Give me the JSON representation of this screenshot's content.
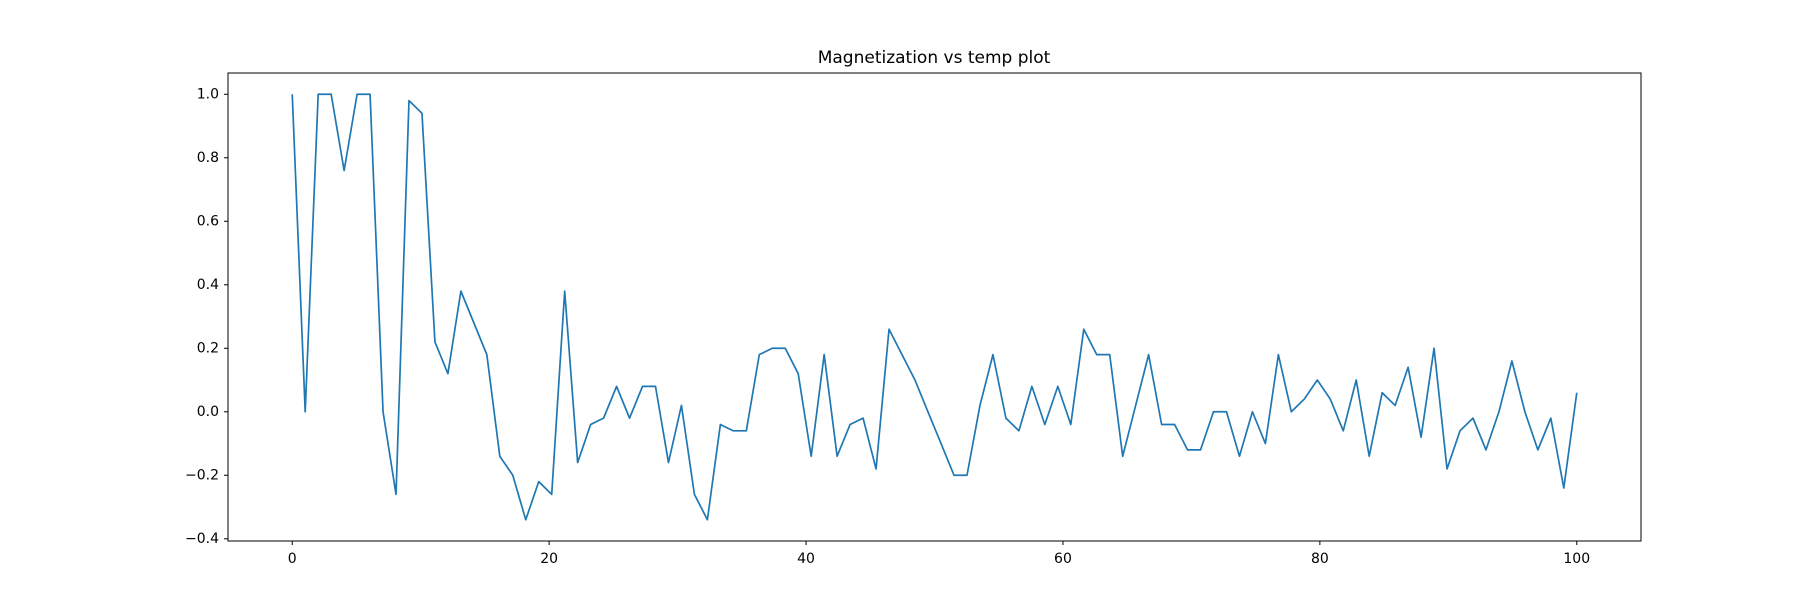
{
  "chart_data": {
    "type": "line",
    "title": "Magnetization vs temp plot",
    "x": [
      0,
      1.01,
      2.02,
      3.03,
      4.04,
      5.05,
      6.06,
      7.07,
      8.08,
      9.09,
      10.1,
      11.11,
      12.12,
      13.13,
      14.14,
      15.15,
      16.16,
      17.17,
      18.18,
      19.19,
      20.2,
      21.21,
      22.22,
      23.23,
      24.24,
      25.25,
      26.26,
      27.27,
      28.28,
      29.29,
      30.3,
      31.31,
      32.32,
      33.33,
      34.34,
      35.35,
      36.36,
      37.37,
      38.38,
      39.39,
      40.4,
      41.41,
      42.42,
      43.43,
      44.44,
      45.45,
      46.46,
      47.47,
      48.48,
      49.49,
      50.51,
      51.52,
      52.53,
      53.54,
      54.55,
      55.56,
      56.57,
      57.58,
      58.59,
      59.6,
      60.61,
      61.62,
      62.63,
      63.64,
      64.65,
      65.66,
      66.67,
      67.68,
      68.69,
      69.7,
      70.71,
      71.72,
      72.73,
      73.74,
      74.75,
      75.76,
      76.77,
      77.78,
      78.79,
      79.8,
      80.81,
      81.82,
      82.83,
      83.84,
      84.85,
      85.86,
      86.87,
      87.88,
      88.89,
      89.9,
      90.91,
      91.92,
      92.93,
      93.94,
      94.95,
      95.96,
      96.97,
      97.98,
      98.99,
      100
    ],
    "values": [
      1.0,
      0.0,
      1.0,
      1.0,
      0.76,
      1.0,
      1.0,
      0.0,
      -0.26,
      0.98,
      0.94,
      0.22,
      0.12,
      0.38,
      0.28,
      0.18,
      -0.14,
      -0.2,
      -0.34,
      -0.22,
      -0.26,
      0.38,
      -0.16,
      -0.04,
      -0.02,
      0.08,
      -0.02,
      0.08,
      0.08,
      -0.16,
      0.02,
      -0.26,
      -0.34,
      -0.04,
      -0.06,
      -0.06,
      0.18,
      0.2,
      0.2,
      0.12,
      -0.14,
      0.18,
      -0.14,
      -0.04,
      -0.02,
      -0.18,
      0.26,
      0.18,
      0.1,
      0.0,
      -0.1,
      -0.2,
      -0.2,
      0.02,
      0.18,
      -0.02,
      -0.06,
      0.08,
      -0.04,
      0.08,
      -0.04,
      0.26,
      0.18,
      0.18,
      -0.14,
      0.02,
      0.18,
      -0.04,
      -0.04,
      -0.12,
      -0.12,
      0.0,
      0.0,
      -0.14,
      0.0,
      -0.1,
      0.18,
      0.0,
      0.04,
      0.1,
      0.04,
      -0.06,
      0.1,
      -0.14,
      0.06,
      0.02,
      0.14,
      -0.08,
      0.2,
      -0.18,
      -0.06,
      -0.02,
      -0.12,
      0.0,
      0.16,
      0.0,
      -0.12,
      -0.02,
      -0.24,
      0.06
    ],
    "color": "#1f77b4",
    "xlim": [
      -5,
      105
    ],
    "xticks": [
      0,
      20,
      40,
      60,
      80,
      100
    ],
    "ylim": [
      -0.407,
      1.067
    ],
    "yticks": [
      {
        "value": -0.4,
        "label": "−0.4"
      },
      {
        "value": -0.2,
        "label": "−0.2"
      },
      {
        "value": 0,
        "label": "0.0"
      },
      0.2,
      0.4,
      0.6,
      0.8,
      {
        "value": 1,
        "label": "1.0"
      }
    ],
    "grid": false
  }
}
